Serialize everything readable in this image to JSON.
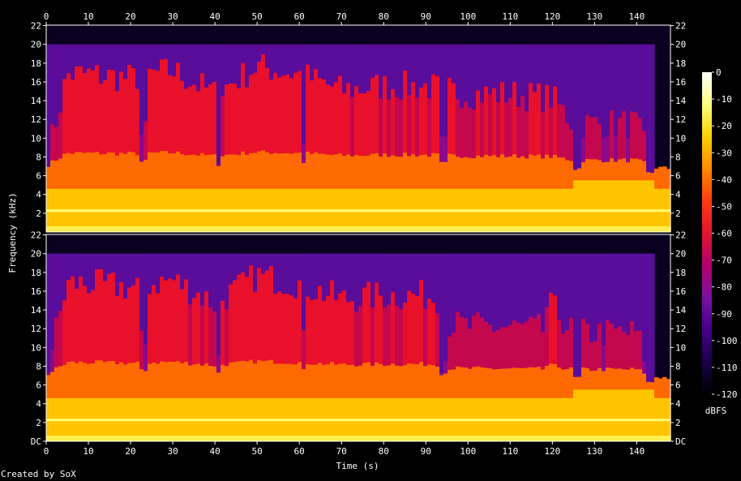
{
  "chart_data": {
    "type": "heatmap",
    "subtype": "spectrogram",
    "channels": 2,
    "xlabel": "Time (s)",
    "ylabel": "Frequency (kHz)",
    "xlim": [
      0,
      148
    ],
    "ylim_khz": [
      0,
      22.05
    ],
    "x_ticks": [
      0,
      10,
      20,
      30,
      40,
      50,
      60,
      70,
      80,
      90,
      100,
      110,
      120,
      130,
      140
    ],
    "y_ticks_top": [
      "22",
      "20",
      "18",
      "16",
      "14",
      "12",
      "10",
      "8",
      "6",
      "4",
      "2"
    ],
    "y_ticks_bottom": [
      "22",
      "20",
      "18",
      "16",
      "14",
      "12",
      "10",
      "8",
      "6",
      "4",
      "2",
      "DC"
    ],
    "y_tick_values": [
      22,
      20,
      18,
      16,
      14,
      12,
      10,
      8,
      6,
      4,
      2,
      0
    ],
    "colorbar": {
      "label": "dBFS",
      "ticks": [
        "0",
        "-10",
        "-20",
        "-30",
        "-40",
        "-50",
        "-60",
        "-70",
        "-80",
        "-90",
        "-100",
        "-110",
        "-120"
      ],
      "range": [
        -120,
        0
      ],
      "colors": [
        "#000000",
        "#1a0048",
        "#44008a",
        "#7b10a0",
        "#b00070",
        "#e3152e",
        "#ff3a10",
        "#ff8a00",
        "#ffd000",
        "#ffff80",
        "#ffffff"
      ]
    },
    "bandwidth_limit_khz": 20,
    "events_s": {
      "quiet_intro_end": 5,
      "dips": [
        23,
        41,
        61,
        94,
        126,
        143
      ],
      "outro_start": 144
    },
    "energy_profile": {
      "time_s": [
        0,
        5,
        10,
        20,
        30,
        40,
        50,
        60,
        70,
        80,
        90,
        100,
        110,
        120,
        125,
        130,
        140,
        144,
        148
      ],
      "level": [
        0.35,
        0.8,
        0.8,
        0.78,
        0.82,
        0.7,
        0.84,
        0.8,
        0.72,
        0.74,
        0.74,
        0.7,
        0.7,
        0.68,
        0.55,
        0.55,
        0.55,
        0.3,
        0.25
      ]
    }
  },
  "footer": {
    "credit": "Created by SoX"
  }
}
